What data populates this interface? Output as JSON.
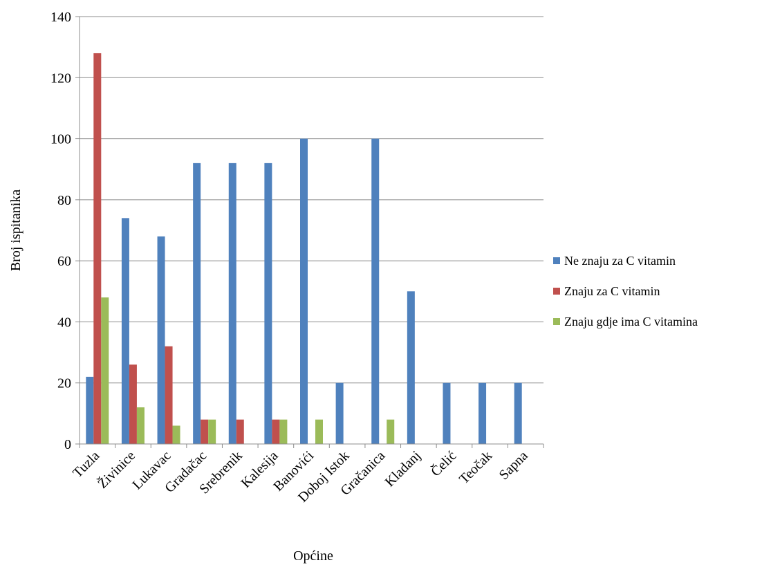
{
  "chart_data": {
    "type": "bar",
    "title": "",
    "xlabel": "Općine",
    "ylabel": "Broj ispitanika",
    "ylim": [
      0,
      140
    ],
    "yticks": [
      0,
      20,
      40,
      60,
      80,
      100,
      120,
      140
    ],
    "grid": true,
    "legend_position": "right",
    "categories": [
      "Tuzla",
      "Živinice",
      "Lukavac",
      "Gradačac",
      "Srebrenik",
      "Kalesija",
      "Banovići",
      "Doboj Istok",
      "Gračanica",
      "Kladanj",
      "Čelić",
      "Teočak",
      "Sapna"
    ],
    "series": [
      {
        "name": "Ne znaju za C vitamin",
        "color": "#4F81BD",
        "values": [
          22,
          74,
          68,
          92,
          92,
          92,
          100,
          20,
          100,
          50,
          20,
          20,
          20
        ]
      },
      {
        "name": "Znaju za C vitamin",
        "color": "#C0504D",
        "values": [
          128,
          26,
          32,
          8,
          8,
          8,
          0,
          0,
          0,
          0,
          0,
          0,
          0
        ]
      },
      {
        "name": "Znaju gdje ima C vitamina",
        "color": "#9BBB59",
        "values": [
          48,
          12,
          6,
          8,
          0,
          8,
          8,
          0,
          8,
          0,
          0,
          0,
          0
        ]
      }
    ]
  }
}
